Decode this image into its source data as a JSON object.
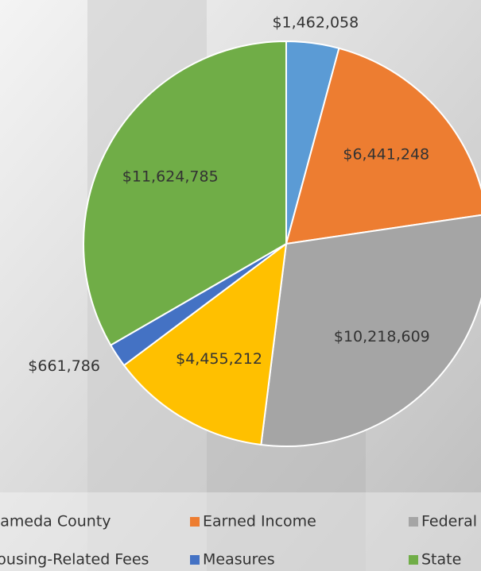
{
  "chart_data": {
    "type": "pie",
    "categories": [
      "Alameda County",
      "Earned Income",
      "Federal",
      "Housing-Related Fees",
      "Measures",
      "State"
    ],
    "values": [
      1462058,
      6441248,
      10218609,
      4455212,
      661786,
      11624785
    ],
    "value_labels": [
      "$1,462,058",
      "$6,441,248",
      "$10,218,609",
      "$4,455,212",
      "$661,786",
      "$11,624,785"
    ],
    "colors": [
      "#5b9bd5",
      "#ed7d31",
      "#a5a5a5",
      "#ffc000",
      "#4472c4",
      "#70ad47"
    ],
    "legend": "bottom"
  }
}
